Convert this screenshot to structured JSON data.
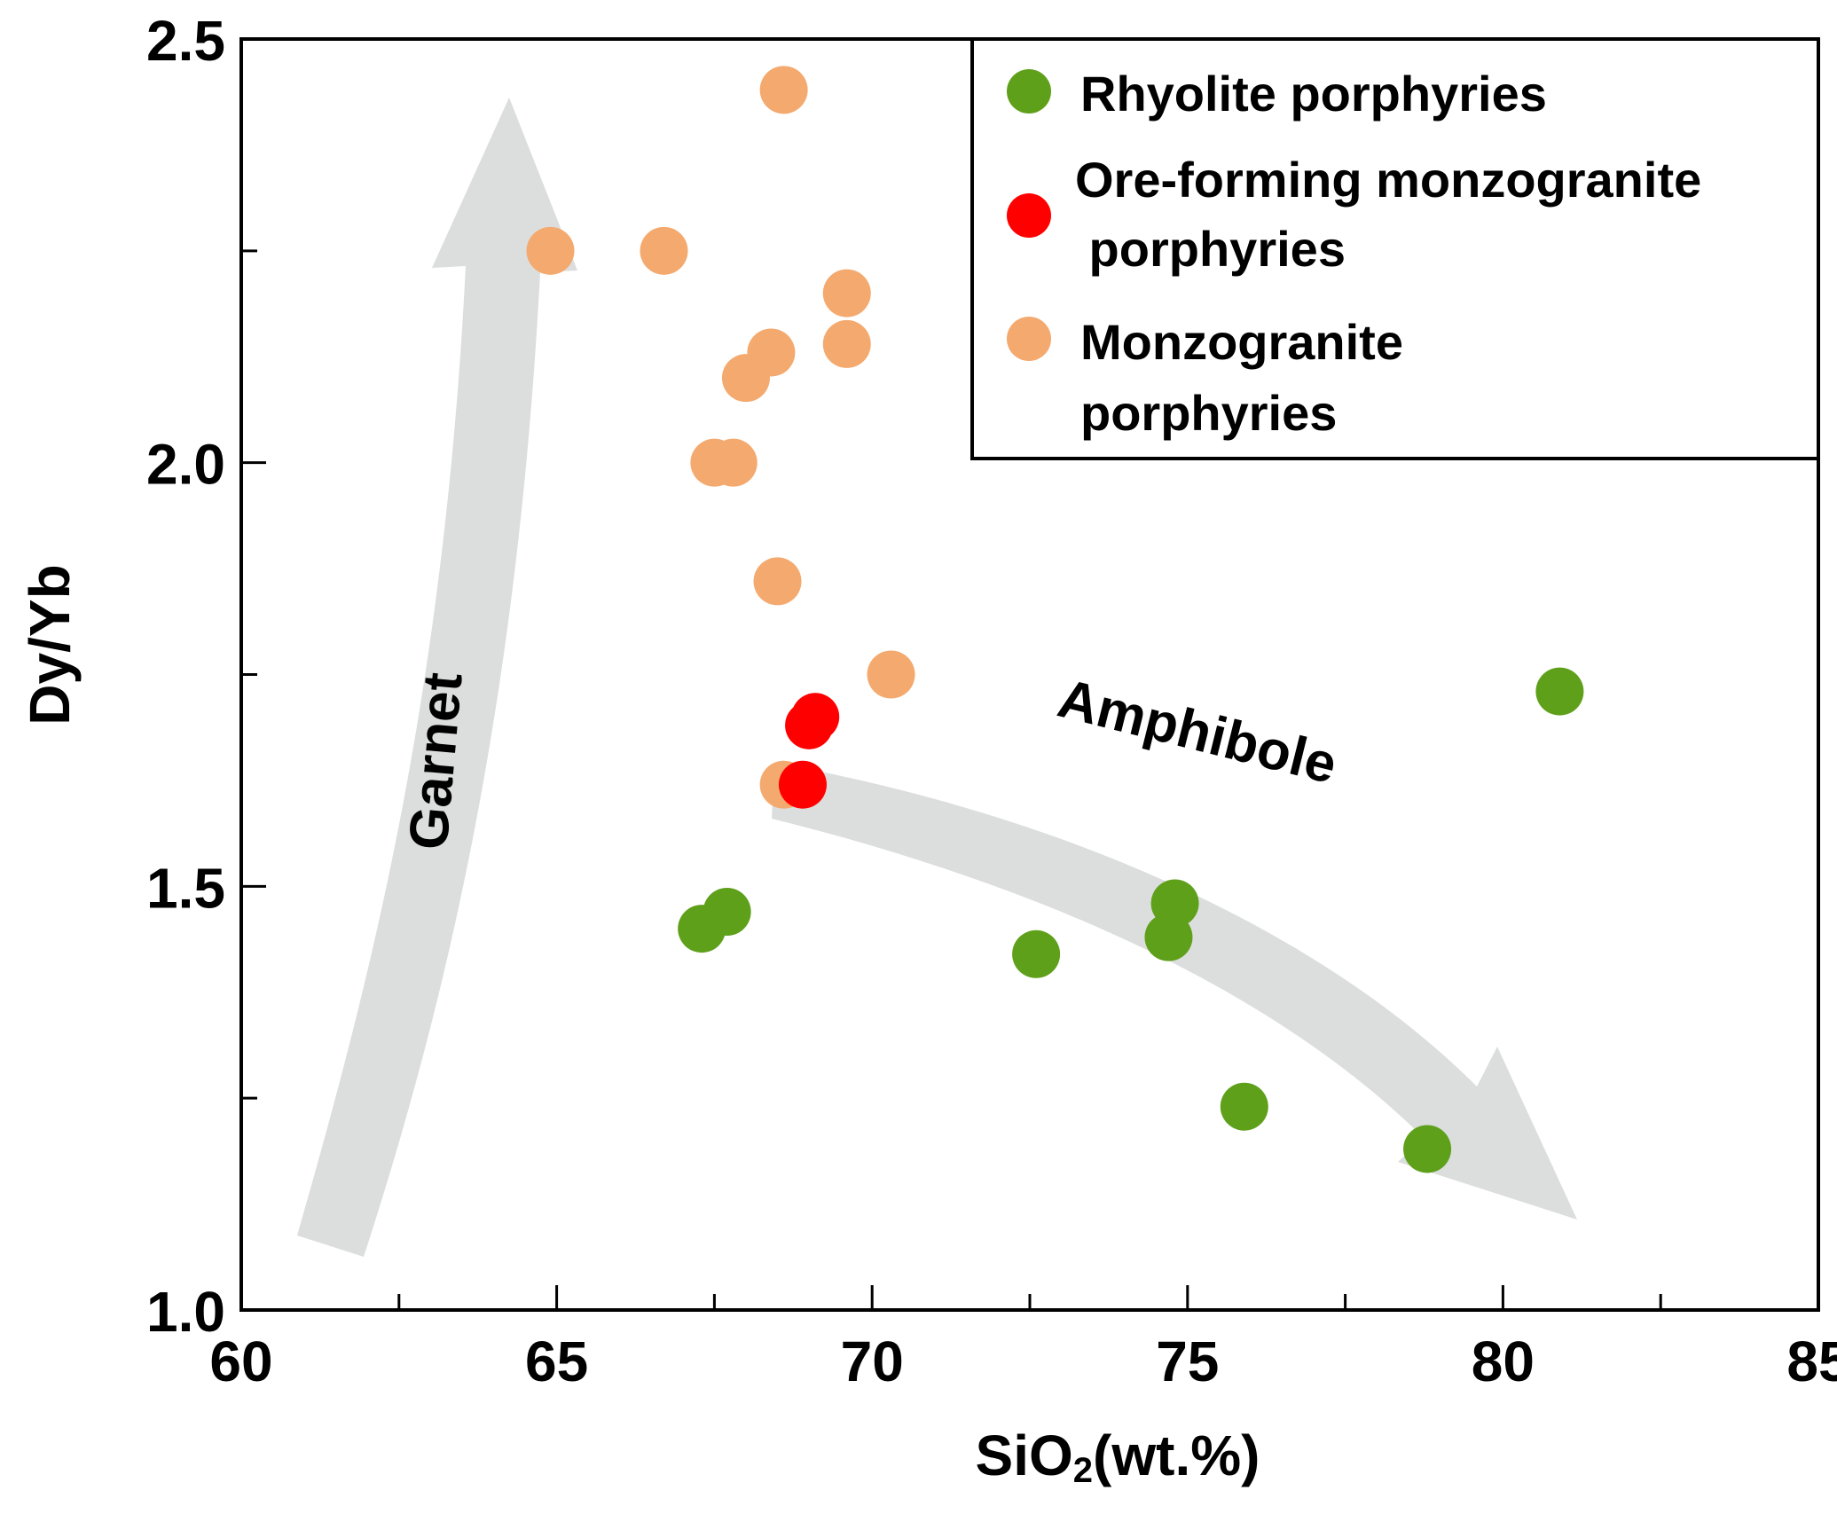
{
  "chart_data": {
    "type": "scatter",
    "xlabel": "SiO",
    "xlabel_subscript": "2",
    "xlabel_suffix": "(wt.%)",
    "ylabel": "Dy/Yb",
    "xlim": [
      60,
      85
    ],
    "ylim": [
      1.0,
      2.5
    ],
    "x_ticks": [
      "60",
      "65",
      "70",
      "75",
      "80",
      "85"
    ],
    "y_ticks": [
      "1.0",
      "1.5",
      "2.0",
      "2.5"
    ],
    "grid": false,
    "legend_position": "top-right",
    "series": [
      {
        "name": "Rhyolite porphyries",
        "color": "#5fa01b",
        "points": [
          {
            "x": 67.3,
            "y": 1.45
          },
          {
            "x": 67.7,
            "y": 1.47
          },
          {
            "x": 72.6,
            "y": 1.42
          },
          {
            "x": 74.8,
            "y": 1.48
          },
          {
            "x": 74.7,
            "y": 1.44
          },
          {
            "x": 75.9,
            "y": 1.24
          },
          {
            "x": 78.8,
            "y": 1.19
          },
          {
            "x": 80.9,
            "y": 1.73
          }
        ]
      },
      {
        "name": "Ore-forming monzogranite porphyries",
        "name_lines": [
          "Ore-forming monzogranite",
          " porphyries"
        ],
        "color": "#ff0000",
        "points": [
          {
            "x": 69.1,
            "y": 1.7
          },
          {
            "x": 69.0,
            "y": 1.69
          },
          {
            "x": 68.9,
            "y": 1.62
          }
        ]
      },
      {
        "name": "Monzogranite porphyries",
        "name_lines": [
          "Monzogranite",
          "porphyries"
        ],
        "color": "#f4a96e",
        "points": [
          {
            "x": 68.6,
            "y": 2.44
          },
          {
            "x": 64.9,
            "y": 2.25
          },
          {
            "x": 66.7,
            "y": 2.25
          },
          {
            "x": 69.6,
            "y": 2.2
          },
          {
            "x": 69.6,
            "y": 2.14
          },
          {
            "x": 68.4,
            "y": 2.13
          },
          {
            "x": 68.0,
            "y": 2.1
          },
          {
            "x": 67.5,
            "y": 2.0
          },
          {
            "x": 67.8,
            "y": 2.0
          },
          {
            "x": 68.5,
            "y": 1.86
          },
          {
            "x": 70.3,
            "y": 1.75
          },
          {
            "x": 68.6,
            "y": 1.62
          }
        ]
      }
    ],
    "annotations": [
      {
        "text": "Garnet",
        "arrow": "up"
      },
      {
        "text": "Amphibole",
        "arrow": "down-right"
      }
    ]
  }
}
